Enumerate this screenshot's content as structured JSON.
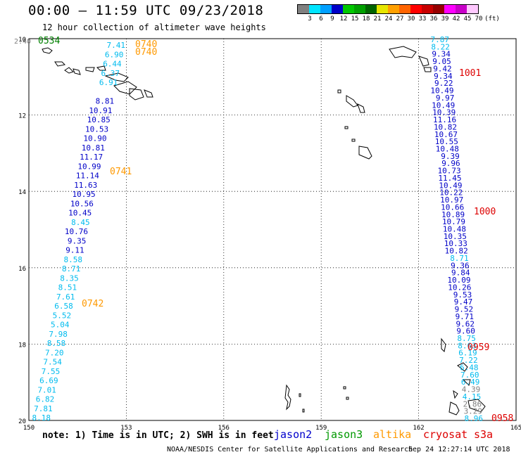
{
  "title": "00:00 — 11:59 UTC 09/23/2018",
  "subtitle": "12 hour collection of altimeter wave heights",
  "legend": {
    "colors": [
      "#808080",
      "#00e5ff",
      "#00a0ff",
      "#0000c8",
      "#00c800",
      "#00a000",
      "#006400",
      "#e6e600",
      "#ffa000",
      "#ff6400",
      "#ff0000",
      "#c80000",
      "#960000",
      "#ff00ff",
      "#c800c8",
      "#ffc8ff"
    ],
    "labels": [
      "3",
      "6",
      "9",
      "12",
      "15",
      "18",
      "21",
      "24",
      "27",
      "30",
      "33",
      "36",
      "39",
      "42",
      "45",
      "70",
      "(ft)"
    ],
    "unit": "(ft)"
  },
  "map": {
    "lon_range": [
      150,
      165
    ],
    "lat_range": [
      10,
      20
    ],
    "lon_ticks": [
      "150",
      "153",
      "156",
      "159",
      "162",
      "165"
    ],
    "lat_ticks": [
      "10",
      "12",
      "14",
      "16",
      "18",
      "20"
    ],
    "colors": {
      "jason2": "#0000c8",
      "jason3": "#008000",
      "altika": "#ff9900",
      "cryosat": "#dd0000",
      "s3a": "#dd0000",
      "light": "#00bbee",
      "gray": "#808080"
    }
  },
  "tracks": {
    "left_values": [
      {
        "t": "7.41",
        "c": "light"
      },
      {
        "t": "6.90",
        "c": "light"
      },
      {
        "t": "6.44",
        "c": "light"
      },
      {
        "t": "6.37",
        "c": "light"
      },
      {
        "t": "6.91",
        "c": "light"
      },
      {
        "t": "",
        "c": "light"
      },
      {
        "t": "8.81",
        "c": "jason2"
      },
      {
        "t": "10.91",
        "c": "jason2"
      },
      {
        "t": "10.85",
        "c": "jason2"
      },
      {
        "t": "10.53",
        "c": "jason2"
      },
      {
        "t": "10.90",
        "c": "jason2"
      },
      {
        "t": "10.81",
        "c": "jason2"
      },
      {
        "t": "11.17",
        "c": "jason2"
      },
      {
        "t": "10.99",
        "c": "jason2"
      },
      {
        "t": "11.14",
        "c": "jason2"
      },
      {
        "t": "11.63",
        "c": "jason2"
      },
      {
        "t": "10.95",
        "c": "jason2"
      },
      {
        "t": "10.56",
        "c": "jason2"
      },
      {
        "t": "10.45",
        "c": "jason2"
      },
      {
        "t": "8.45",
        "c": "light"
      },
      {
        "t": "10.76",
        "c": "jason2"
      },
      {
        "t": "9.35",
        "c": "jason2"
      },
      {
        "t": "9.11",
        "c": "jason2"
      },
      {
        "t": "8.58",
        "c": "light"
      },
      {
        "t": "8.71",
        "c": "light"
      },
      {
        "t": "8.35",
        "c": "light"
      },
      {
        "t": "8.51",
        "c": "light"
      },
      {
        "t": "7.61",
        "c": "light"
      },
      {
        "t": "6.58",
        "c": "light"
      },
      {
        "t": "5.52",
        "c": "light"
      },
      {
        "t": "5.04",
        "c": "light"
      },
      {
        "t": "7.98",
        "c": "light"
      },
      {
        "t": "8.58",
        "c": "light"
      },
      {
        "t": "7.20",
        "c": "light"
      },
      {
        "t": "7.54",
        "c": "light"
      },
      {
        "t": "7.55",
        "c": "light"
      },
      {
        "t": "6.69",
        "c": "light"
      },
      {
        "t": "7.01",
        "c": "light"
      },
      {
        "t": "6.82",
        "c": "light"
      },
      {
        "t": "7.81",
        "c": "light"
      },
      {
        "t": "8.18",
        "c": "light"
      }
    ],
    "right_values": [
      {
        "t": "7.87",
        "c": "light"
      },
      {
        "t": "8.22",
        "c": "light"
      },
      {
        "t": "9.34",
        "c": "jason2"
      },
      {
        "t": "9.05",
        "c": "jason2"
      },
      {
        "t": "9.42",
        "c": "jason2"
      },
      {
        "t": "9.34",
        "c": "jason2"
      },
      {
        "t": "9.22",
        "c": "jason2"
      },
      {
        "t": "10.49",
        "c": "jason2"
      },
      {
        "t": "9.97",
        "c": "jason2"
      },
      {
        "t": "10.49",
        "c": "jason2"
      },
      {
        "t": "10.39",
        "c": "jason2"
      },
      {
        "t": "11.16",
        "c": "jason2"
      },
      {
        "t": "10.82",
        "c": "jason2"
      },
      {
        "t": "10.67",
        "c": "jason2"
      },
      {
        "t": "10.55",
        "c": "jason2"
      },
      {
        "t": "10.48",
        "c": "jason2"
      },
      {
        "t": "9.39",
        "c": "jason2"
      },
      {
        "t": "9.96",
        "c": "jason2"
      },
      {
        "t": "10.73",
        "c": "jason2"
      },
      {
        "t": "11.45",
        "c": "jason2"
      },
      {
        "t": "10.49",
        "c": "jason2"
      },
      {
        "t": "10.22",
        "c": "jason2"
      },
      {
        "t": "10.97",
        "c": "jason2"
      },
      {
        "t": "10.66",
        "c": "jason2"
      },
      {
        "t": "10.89",
        "c": "jason2"
      },
      {
        "t": "10.79",
        "c": "jason2"
      },
      {
        "t": "10.48",
        "c": "jason2"
      },
      {
        "t": "10.35",
        "c": "jason2"
      },
      {
        "t": "10.33",
        "c": "jason2"
      },
      {
        "t": "10.82",
        "c": "jason2"
      },
      {
        "t": "8.71",
        "c": "light"
      },
      {
        "t": "9.36",
        "c": "jason2"
      },
      {
        "t": "9.84",
        "c": "jason2"
      },
      {
        "t": "10.09",
        "c": "jason2"
      },
      {
        "t": "10.26",
        "c": "jason2"
      },
      {
        "t": "9.53",
        "c": "jason2"
      },
      {
        "t": "9.47",
        "c": "jason2"
      },
      {
        "t": "9.52",
        "c": "jason2"
      },
      {
        "t": "9.71",
        "c": "jason2"
      },
      {
        "t": "9.62",
        "c": "jason2"
      },
      {
        "t": "9.60",
        "c": "jason2"
      },
      {
        "t": "8.75",
        "c": "light"
      },
      {
        "t": "8.63",
        "c": "light"
      },
      {
        "t": "6.19",
        "c": "light"
      },
      {
        "t": "7.22",
        "c": "light"
      },
      {
        "t": "6.48",
        "c": "light"
      },
      {
        "t": "7.60",
        "c": "light"
      },
      {
        "t": "6.49",
        "c": "light"
      },
      {
        "t": "4.39",
        "c": "gray"
      },
      {
        "t": "4.15",
        "c": "light"
      },
      {
        "t": "2.86",
        "c": "gray"
      },
      {
        "t": "3.29",
        "c": "gray"
      },
      {
        "t": "8.96",
        "c": "light"
      }
    ],
    "topleft_value": "2.40"
  },
  "times": [
    {
      "t": "0534",
      "c": "jason3"
    },
    {
      "t": "0740",
      "c": "altika"
    },
    {
      "t": "0740",
      "c": "altika"
    },
    {
      "t": "0741",
      "c": "altika"
    },
    {
      "t": "0742",
      "c": "altika"
    },
    {
      "t": "1001",
      "c": "cryosat"
    },
    {
      "t": "1000",
      "c": "cryosat"
    },
    {
      "t": "0959",
      "c": "cryosat"
    },
    {
      "t": "0958",
      "c": "cryosat"
    }
  ],
  "note": "note: 1) Time is in UTC; 2) SWH is in feet",
  "satellites": [
    {
      "name": "jason2",
      "color": "#0000cc"
    },
    {
      "name": "jason3",
      "color": "#009900"
    },
    {
      "name": "altika",
      "color": "#ff9900"
    },
    {
      "name": "cryosat",
      "color": "#dd0000"
    },
    {
      "name": "s3a",
      "color": "#dd0000"
    }
  ],
  "footer_left": "NOAA/NESDIS Center for Satellite Applications and Research",
  "footer_right": "Sep 24 12:27:14 UTC 2018"
}
